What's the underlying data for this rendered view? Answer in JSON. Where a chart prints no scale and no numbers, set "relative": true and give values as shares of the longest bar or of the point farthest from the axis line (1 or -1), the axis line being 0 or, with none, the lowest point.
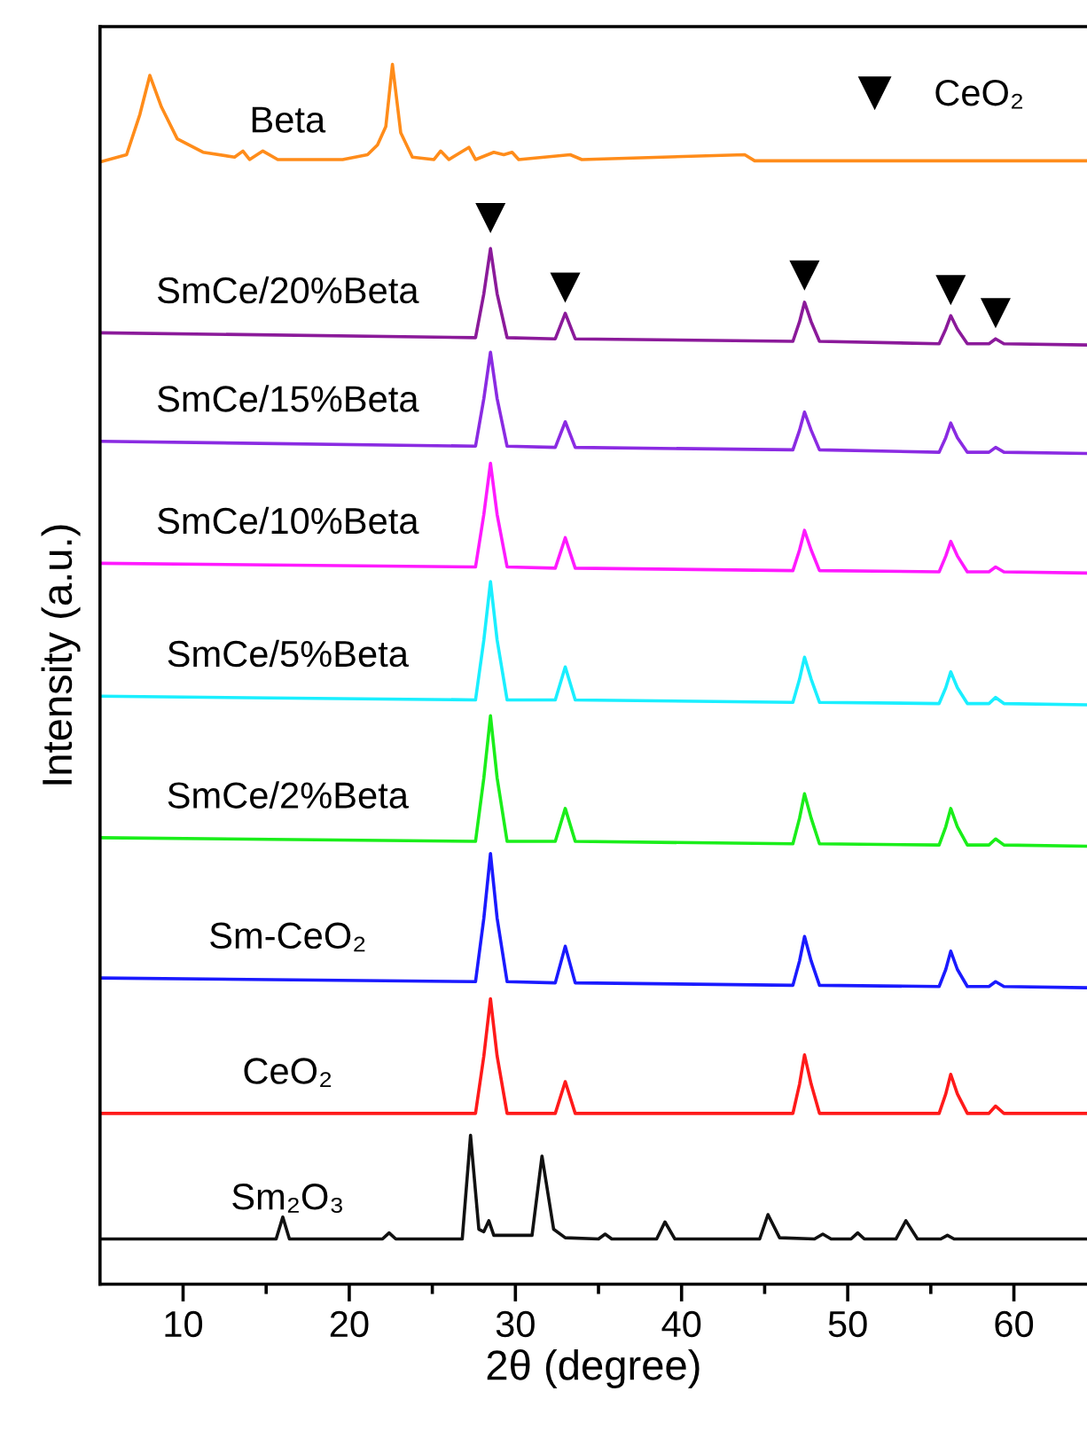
{
  "chart_data": {
    "type": "line",
    "relative": true,
    "xlabel": "2θ (degree)",
    "ylabel": "Intensity (a.u.)",
    "xlim": [
      5,
      64.4
    ],
    "xticks": [
      10,
      {
        "value": 15,
        "label": null
      },
      20,
      {
        "value": 25,
        "label": null
      },
      30,
      {
        "value": 35,
        "label": null
      },
      40,
      {
        "value": 45,
        "label": null
      },
      50,
      {
        "value": 55,
        "label": null
      },
      60
    ],
    "grid": false,
    "legend": "top right",
    "series": [
      {
        "name": "Beta",
        "color": "#ff8c1a",
        "x": [
          5,
          6.6,
          7.4,
          8.0,
          8.7,
          9.65,
          11.2,
          13.1,
          13.6,
          14.0,
          14.8,
          15.7,
          19.6,
          21.1,
          21.7,
          22.2,
          22.6,
          23.1,
          23.8,
          25.1,
          25.5,
          26.0,
          27.2,
          27.6,
          28.7,
          29.3,
          29.8,
          30.2,
          33.3,
          34.0,
          43.8,
          44.4,
          64.4
        ],
        "values": [
          0.92,
          0.926,
          0.959,
          0.991,
          0.965,
          0.939,
          0.928,
          0.924,
          0.929,
          0.922,
          0.929,
          0.922,
          0.922,
          0.926,
          0.934,
          0.949,
          1.0,
          0.944,
          0.924,
          0.922,
          0.929,
          0.922,
          0.932,
          0.922,
          0.928,
          0.926,
          0.928,
          0.922,
          0.926,
          0.922,
          0.926,
          0.921,
          0.921
        ]
      },
      {
        "name": "SmCe/20%Beta",
        "color": "#8b1a9a",
        "x": [
          5,
          27.6,
          28.1,
          28.5,
          28.9,
          29.5,
          32.4,
          33.0,
          33.6,
          46.7,
          47.1,
          47.4,
          47.8,
          48.3,
          55.5,
          55.9,
          56.2,
          56.6,
          57.2,
          58.5,
          58.9,
          59.4,
          64.4
        ],
        "values": [
          0.78,
          0.776,
          0.812,
          0.849,
          0.812,
          0.776,
          0.775,
          0.796,
          0.775,
          0.773,
          0.789,
          0.805,
          0.789,
          0.773,
          0.771,
          0.783,
          0.794,
          0.783,
          0.771,
          0.771,
          0.775,
          0.771,
          0.77
        ]
      },
      {
        "name": "SmCe/15%Beta",
        "color": "#8a2be2",
        "x": [
          5,
          27.6,
          28.1,
          28.5,
          28.9,
          29.5,
          32.4,
          33.0,
          33.6,
          46.7,
          47.1,
          47.4,
          47.8,
          48.3,
          55.5,
          55.9,
          56.2,
          56.6,
          57.2,
          58.5,
          58.9,
          59.4,
          64.4
        ],
        "values": [
          0.691,
          0.687,
          0.726,
          0.764,
          0.726,
          0.687,
          0.686,
          0.707,
          0.686,
          0.684,
          0.7,
          0.715,
          0.7,
          0.684,
          0.682,
          0.694,
          0.706,
          0.694,
          0.682,
          0.682,
          0.686,
          0.682,
          0.681
        ]
      },
      {
        "name": "SmCe/10%Beta",
        "color": "#ff1aff",
        "x": [
          5,
          27.6,
          28.1,
          28.5,
          28.9,
          29.5,
          32.4,
          33.0,
          33.6,
          46.7,
          47.1,
          47.4,
          47.8,
          48.3,
          55.5,
          55.9,
          56.2,
          56.6,
          57.2,
          58.5,
          58.9,
          59.4,
          64.4
        ],
        "values": [
          0.591,
          0.588,
          0.631,
          0.673,
          0.631,
          0.588,
          0.587,
          0.612,
          0.587,
          0.585,
          0.602,
          0.618,
          0.602,
          0.585,
          0.584,
          0.597,
          0.609,
          0.597,
          0.584,
          0.584,
          0.588,
          0.584,
          0.583
        ]
      },
      {
        "name": "SmCe/5%Beta",
        "color": "#1aefff",
        "x": [
          5,
          27.6,
          28.1,
          28.5,
          28.9,
          29.5,
          32.4,
          33.0,
          33.6,
          46.7,
          47.1,
          47.4,
          47.8,
          48.3,
          55.5,
          55.9,
          56.2,
          56.6,
          57.2,
          58.5,
          58.9,
          59.4,
          64.4
        ],
        "values": [
          0.482,
          0.479,
          0.528,
          0.576,
          0.528,
          0.479,
          0.479,
          0.506,
          0.479,
          0.477,
          0.496,
          0.514,
          0.496,
          0.477,
          0.476,
          0.489,
          0.502,
          0.489,
          0.476,
          0.476,
          0.481,
          0.476,
          0.475
        ]
      },
      {
        "name": "SmCe/2%Beta",
        "color": "#1aee1a",
        "x": [
          5,
          27.6,
          28.1,
          28.5,
          28.9,
          29.5,
          32.4,
          33.0,
          33.6,
          46.7,
          47.1,
          47.4,
          47.8,
          48.3,
          55.5,
          55.9,
          56.2,
          56.6,
          57.2,
          58.5,
          58.9,
          59.4,
          64.4
        ],
        "values": [
          0.366,
          0.363,
          0.415,
          0.466,
          0.415,
          0.363,
          0.363,
          0.39,
          0.363,
          0.361,
          0.382,
          0.402,
          0.382,
          0.361,
          0.36,
          0.375,
          0.39,
          0.375,
          0.36,
          0.36,
          0.365,
          0.36,
          0.359
        ]
      },
      {
        "name": "Sm-CeO₂",
        "color": "#1a1aff",
        "x": [
          5,
          27.6,
          28.1,
          28.5,
          28.9,
          29.5,
          32.4,
          33.0,
          33.6,
          46.7,
          47.1,
          47.4,
          47.8,
          48.3,
          55.5,
          55.9,
          56.2,
          56.6,
          57.2,
          58.5,
          58.9,
          59.4,
          64.4
        ],
        "values": [
          0.251,
          0.248,
          0.3,
          0.353,
          0.3,
          0.248,
          0.247,
          0.277,
          0.247,
          0.245,
          0.265,
          0.285,
          0.265,
          0.245,
          0.244,
          0.258,
          0.273,
          0.258,
          0.244,
          0.244,
          0.248,
          0.244,
          0.243
        ]
      },
      {
        "name": "CeO₂",
        "color": "#ff1a1a",
        "x": [
          5,
          27.6,
          28.1,
          28.5,
          28.9,
          29.5,
          32.4,
          33.0,
          33.6,
          46.7,
          47.1,
          47.4,
          47.8,
          48.3,
          55.5,
          55.9,
          56.2,
          56.6,
          57.2,
          58.5,
          58.9,
          59.4,
          64.4
        ],
        "values": [
          0.14,
          0.14,
          0.187,
          0.234,
          0.187,
          0.14,
          0.14,
          0.166,
          0.14,
          0.14,
          0.164,
          0.188,
          0.164,
          0.14,
          0.14,
          0.156,
          0.172,
          0.156,
          0.14,
          0.14,
          0.146,
          0.14,
          0.14
        ]
      },
      {
        "name": "Sm₂O₃",
        "color": "#111111",
        "x": [
          5,
          15.6,
          16.0,
          16.4,
          22.0,
          22.4,
          22.8,
          26.8,
          27.3,
          27.8,
          28.1,
          28.4,
          28.7,
          31.0,
          31.6,
          32.3,
          33.0,
          35.0,
          35.4,
          35.8,
          38.5,
          39.0,
          39.6,
          44.7,
          45.2,
          45.9,
          48.0,
          48.5,
          49.0,
          50.2,
          50.6,
          51.0,
          52.9,
          53.5,
          54.2,
          55.6,
          56.0,
          56.4,
          64.4
        ],
        "values": [
          0.037,
          0.037,
          0.055,
          0.037,
          0.037,
          0.042,
          0.037,
          0.037,
          0.122,
          0.045,
          0.043,
          0.052,
          0.04,
          0.04,
          0.105,
          0.045,
          0.038,
          0.037,
          0.041,
          0.037,
          0.037,
          0.051,
          0.037,
          0.037,
          0.057,
          0.038,
          0.037,
          0.041,
          0.037,
          0.037,
          0.042,
          0.037,
          0.037,
          0.052,
          0.037,
          0.037,
          0.04,
          0.037,
          0.037
        ]
      },
      {
        "name": "CeO₂",
        "type": "scatter",
        "marker": "triangle",
        "color": "#000000",
        "x": [
          28.5,
          33.0,
          47.4,
          56.2,
          58.9
        ],
        "values": [
          0.874,
          0.817,
          0.827,
          0.815,
          0.796
        ]
      }
    ]
  }
}
